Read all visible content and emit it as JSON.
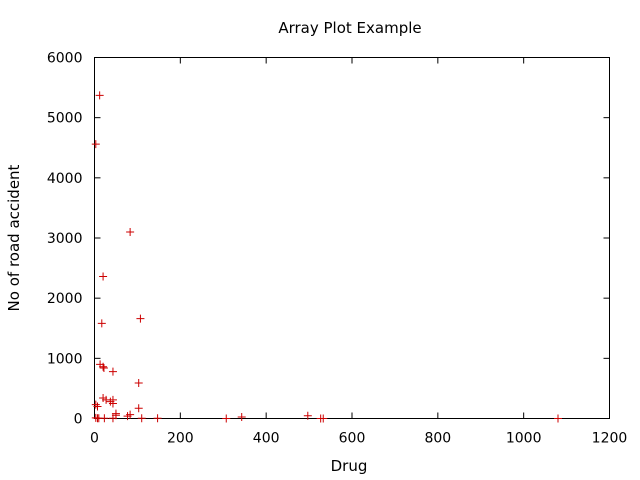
{
  "chart_data": {
    "type": "scatter",
    "title": "Array Plot Example",
    "xlabel": "Drug",
    "ylabel": "No of road accident",
    "xlim": [
      0,
      1200
    ],
    "ylim": [
      0,
      6000
    ],
    "xticks": [
      0,
      200,
      400,
      600,
      800,
      1000,
      1200
    ],
    "yticks": [
      0,
      1000,
      2000,
      3000,
      4000,
      5000,
      6000
    ],
    "x_tick_labels": [
      "0",
      "200",
      "400",
      "600",
      "800",
      "1000",
      "1200"
    ],
    "y_tick_labels": [
      "0",
      "1000",
      "2000",
      "3000",
      "4000",
      "5000",
      "6000"
    ],
    "grid": false,
    "marker": "+",
    "marker_color": "#cc0000",
    "points": [
      {
        "x": 12,
        "y": 5370
      },
      {
        "x": 3,
        "y": 4560
      },
      {
        "x": 83,
        "y": 3100
      },
      {
        "x": 20,
        "y": 2360
      },
      {
        "x": 107,
        "y": 1660
      },
      {
        "x": 17,
        "y": 1580
      },
      {
        "x": 13,
        "y": 900
      },
      {
        "x": 20,
        "y": 860
      },
      {
        "x": 22,
        "y": 840
      },
      {
        "x": 43,
        "y": 780
      },
      {
        "x": 103,
        "y": 590
      },
      {
        "x": 20,
        "y": 340
      },
      {
        "x": 27,
        "y": 310
      },
      {
        "x": 43,
        "y": 310
      },
      {
        "x": 37,
        "y": 280
      },
      {
        "x": 43,
        "y": 250
      },
      {
        "x": 3,
        "y": 230
      },
      {
        "x": 7,
        "y": 200
      },
      {
        "x": 103,
        "y": 170
      },
      {
        "x": 50,
        "y": 80
      },
      {
        "x": 50,
        "y": 55
      },
      {
        "x": 77,
        "y": 40
      },
      {
        "x": 83,
        "y": 65
      },
      {
        "x": 497,
        "y": 45
      },
      {
        "x": 343,
        "y": 25
      },
      {
        "x": 3,
        "y": 10
      },
      {
        "x": 7,
        "y": 5
      },
      {
        "x": 10,
        "y": 5
      },
      {
        "x": 23,
        "y": 5
      },
      {
        "x": 43,
        "y": 5
      },
      {
        "x": 110,
        "y": 5
      },
      {
        "x": 147,
        "y": 5
      },
      {
        "x": 307,
        "y": 0
      },
      {
        "x": 527,
        "y": 0
      },
      {
        "x": 533,
        "y": 0
      },
      {
        "x": 1080,
        "y": 0
      }
    ]
  }
}
